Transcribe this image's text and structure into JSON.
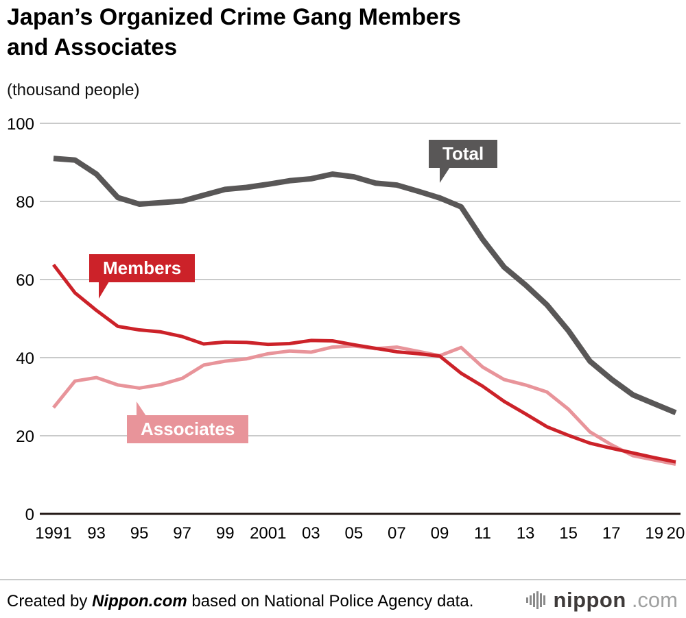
{
  "title": {
    "line1": "Japan’s Organized Crime Gang Members",
    "line2": "and Associates"
  },
  "unit_label": "(thousand people)",
  "chart_data": {
    "type": "line",
    "title": "Japan’s Organized Crime Gang Members and Associates",
    "ylabel": "(thousand people)",
    "ylim": [
      0,
      100
    ],
    "y_ticks": [
      0,
      20,
      40,
      60,
      80,
      100
    ],
    "grid": true,
    "x": [
      1991,
      1992,
      1993,
      1994,
      1995,
      1996,
      1997,
      1998,
      1999,
      2000,
      2001,
      2002,
      2003,
      2004,
      2005,
      2006,
      2007,
      2008,
      2009,
      2010,
      2011,
      2012,
      2013,
      2014,
      2015,
      2016,
      2017,
      2018,
      2019,
      2020
    ],
    "x_ticks": [
      {
        "year": 1991,
        "label": "1991"
      },
      {
        "year": 1993,
        "label": "93"
      },
      {
        "year": 1995,
        "label": "95"
      },
      {
        "year": 1997,
        "label": "97"
      },
      {
        "year": 1999,
        "label": "99"
      },
      {
        "year": 2001,
        "label": "2001"
      },
      {
        "year": 2003,
        "label": "03"
      },
      {
        "year": 2005,
        "label": "05"
      },
      {
        "year": 2007,
        "label": "07"
      },
      {
        "year": 2009,
        "label": "09"
      },
      {
        "year": 2011,
        "label": "11"
      },
      {
        "year": 2013,
        "label": "13"
      },
      {
        "year": 2015,
        "label": "15"
      },
      {
        "year": 2017,
        "label": "17"
      },
      {
        "year": 2019,
        "label": "19"
      },
      {
        "year": 2020,
        "label": "20"
      }
    ],
    "series": [
      {
        "name": "Total",
        "color": "#595757",
        "width": 8,
        "values": [
          91.0,
          90.6,
          87.0,
          81.0,
          79.3,
          79.7,
          80.1,
          81.6,
          83.1,
          83.6,
          84.4,
          85.3,
          85.8,
          87.0,
          86.3,
          84.7,
          84.2,
          82.6,
          80.9,
          78.6,
          70.3,
          63.2,
          58.6,
          53.5,
          46.9,
          39.1,
          34.5,
          30.5,
          28.2,
          25.9
        ]
      },
      {
        "name": "Members",
        "color": "#cc2229",
        "width": 5,
        "values": [
          63.8,
          56.6,
          52.1,
          48.0,
          47.1,
          46.6,
          45.4,
          43.5,
          44.0,
          43.9,
          43.4,
          43.6,
          44.4,
          44.3,
          43.3,
          42.4,
          41.5,
          41.0,
          40.4,
          36.0,
          32.7,
          28.8,
          25.6,
          22.3,
          20.1,
          18.1,
          16.8,
          15.6,
          14.4,
          13.3
        ]
      },
      {
        "name": "Associates",
        "color": "#e8949a",
        "width": 5,
        "values": [
          27.2,
          34.0,
          34.9,
          33.0,
          32.2,
          33.1,
          34.7,
          38.1,
          39.1,
          39.7,
          41.0,
          41.7,
          41.4,
          42.7,
          43.0,
          42.3,
          42.7,
          41.6,
          40.5,
          42.6,
          37.6,
          34.4,
          33.0,
          31.2,
          26.8,
          21.0,
          17.7,
          14.9,
          13.8,
          12.7
        ]
      }
    ],
    "legend_position": "inline-callouts"
  },
  "footer": {
    "prefix": "Created by ",
    "brand": "Nippon.com",
    "suffix": " based on National Police Agency data."
  },
  "logo": {
    "name": "nippon",
    "domain": ".com"
  }
}
